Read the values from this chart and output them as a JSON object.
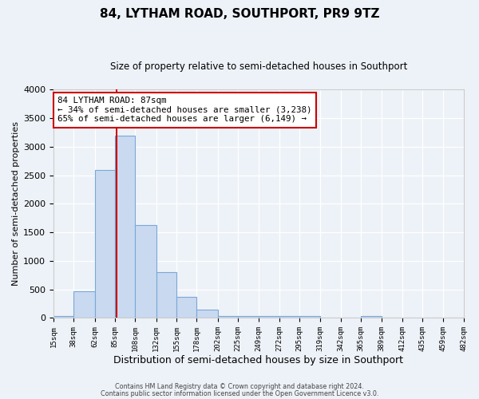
{
  "title": "84, LYTHAM ROAD, SOUTHPORT, PR9 9TZ",
  "subtitle": "Size of property relative to semi-detached houses in Southport",
  "xlabel": "Distribution of semi-detached houses by size in Southport",
  "ylabel": "Number of semi-detached properties",
  "bar_edges": [
    15,
    38,
    62,
    85,
    108,
    132,
    155,
    178,
    202,
    225,
    249,
    272,
    295,
    319,
    342,
    365,
    389,
    412,
    435,
    459,
    482
  ],
  "bar_heights": [
    30,
    460,
    2600,
    3200,
    1630,
    800,
    375,
    150,
    30,
    30,
    30,
    30,
    30,
    0,
    0,
    30,
    0,
    0,
    0,
    0,
    0
  ],
  "bar_color": "#c9d9f0",
  "bar_edgecolor": "#7aa8d8",
  "property_value": 87,
  "vline_color": "#cc0000",
  "ylim": [
    0,
    4000
  ],
  "xlim": [
    15,
    482
  ],
  "annotation_title": "84 LYTHAM ROAD: 87sqm",
  "annotation_line1": "← 34% of semi-detached houses are smaller (3,238)",
  "annotation_line2": "65% of semi-detached houses are larger (6,149) →",
  "annotation_box_facecolor": "#ffffff",
  "annotation_box_edgecolor": "#cc0000",
  "footnote1": "Contains HM Land Registry data © Crown copyright and database right 2024.",
  "footnote2": "Contains public sector information licensed under the Open Government Licence v3.0.",
  "tick_labels": [
    "15sqm",
    "38sqm",
    "62sqm",
    "85sqm",
    "108sqm",
    "132sqm",
    "155sqm",
    "178sqm",
    "202sqm",
    "225sqm",
    "249sqm",
    "272sqm",
    "295sqm",
    "319sqm",
    "342sqm",
    "365sqm",
    "389sqm",
    "412sqm",
    "435sqm",
    "459sqm",
    "482sqm"
  ],
  "background_color": "#edf2f8",
  "plot_background": "#edf2f8",
  "grid_color": "#ffffff"
}
